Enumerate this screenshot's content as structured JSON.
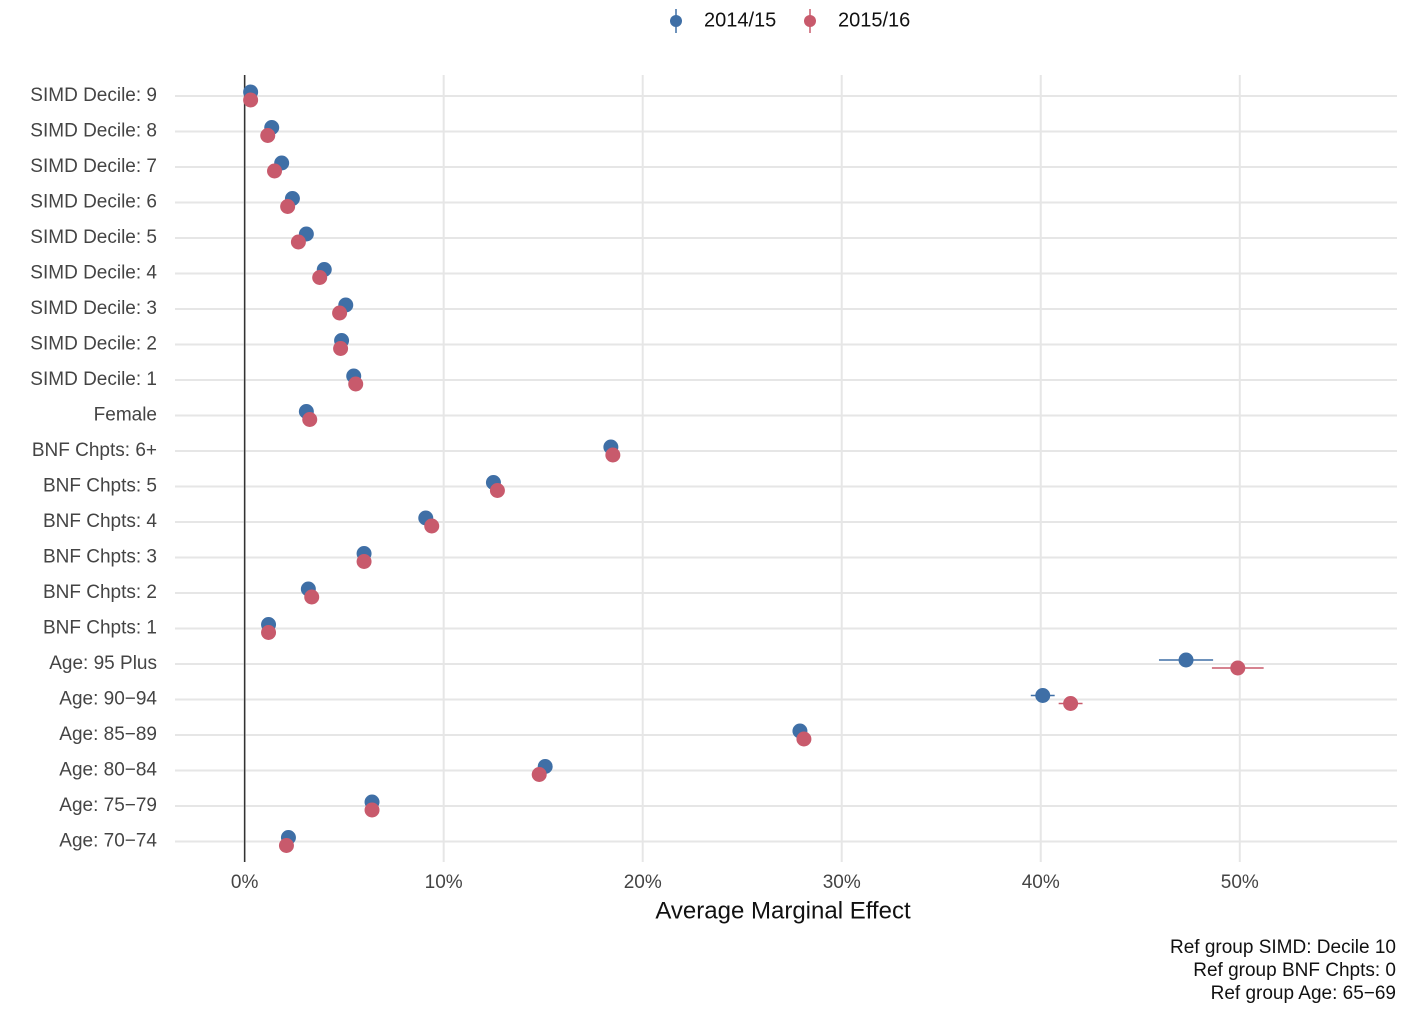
{
  "chart_data": {
    "type": "dot",
    "orientation": "horizontal",
    "xlabel": "Average Marginal Effect",
    "legend": "top",
    "grid": true,
    "caption": [
      "Ref group SIMD: Decile 10",
      "Ref group BNF Chpts: 0",
      "Ref group Age: 65−69"
    ],
    "categories": [
      "SIMD Decile: 9",
      "SIMD Decile: 8",
      "SIMD Decile: 7",
      "SIMD Decile: 6",
      "SIMD Decile: 5",
      "SIMD Decile: 4",
      "SIMD Decile: 3",
      "SIMD Decile: 2",
      "SIMD Decile: 1",
      "Female",
      "BNF Chpts: 6+",
      "BNF Chpts: 5",
      "BNF Chpts: 4",
      "BNF Chpts: 3",
      "BNF Chpts: 2",
      "BNF Chpts: 1",
      "Age: 95 Plus",
      "Age: 90−94",
      "Age: 85−89",
      "Age: 80−84",
      "Age: 75−79",
      "Age: 70−74"
    ],
    "xlim": [
      -3.5,
      57.9
    ],
    "xticks": [
      {
        "value": 0,
        "label": "0%"
      },
      {
        "value": 10,
        "label": "10%"
      },
      {
        "value": 20,
        "label": "20%"
      },
      {
        "value": 30,
        "label": "30%"
      },
      {
        "value": 40,
        "label": "40%"
      },
      {
        "value": 50,
        "label": "50%"
      }
    ],
    "series": [
      {
        "name": "2014/15",
        "color": "#3f6fa6",
        "values": [
          0.3,
          1.36,
          1.86,
          2.4,
          3.1,
          4.0,
          5.08,
          4.87,
          5.48,
          3.1,
          18.4,
          12.5,
          9.1,
          6.0,
          3.2,
          1.2,
          47.3,
          40.1,
          27.9,
          15.1,
          6.4,
          2.2
        ],
        "errors": [
          0.1,
          0.1,
          0.1,
          0.1,
          0.1,
          0.1,
          0.1,
          0.1,
          0.1,
          0.1,
          0.2,
          0.2,
          0.2,
          0.1,
          0.1,
          0.1,
          1.36,
          0.6,
          0.2,
          0.2,
          0.1,
          0.1
        ]
      },
      {
        "name": "2015/16",
        "color": "#c85a6c",
        "values": [
          0.3,
          1.16,
          1.5,
          2.16,
          2.7,
          3.77,
          4.77,
          4.82,
          5.58,
          3.27,
          18.5,
          12.7,
          9.4,
          6.0,
          3.37,
          1.2,
          49.9,
          41.5,
          28.1,
          14.8,
          6.4,
          2.1
        ],
        "errors": [
          0.1,
          0.1,
          0.1,
          0.1,
          0.1,
          0.1,
          0.1,
          0.1,
          0.1,
          0.1,
          0.2,
          0.2,
          0.2,
          0.1,
          0.1,
          0.1,
          1.3,
          0.6,
          0.2,
          0.2,
          0.1,
          0.1
        ]
      }
    ]
  }
}
